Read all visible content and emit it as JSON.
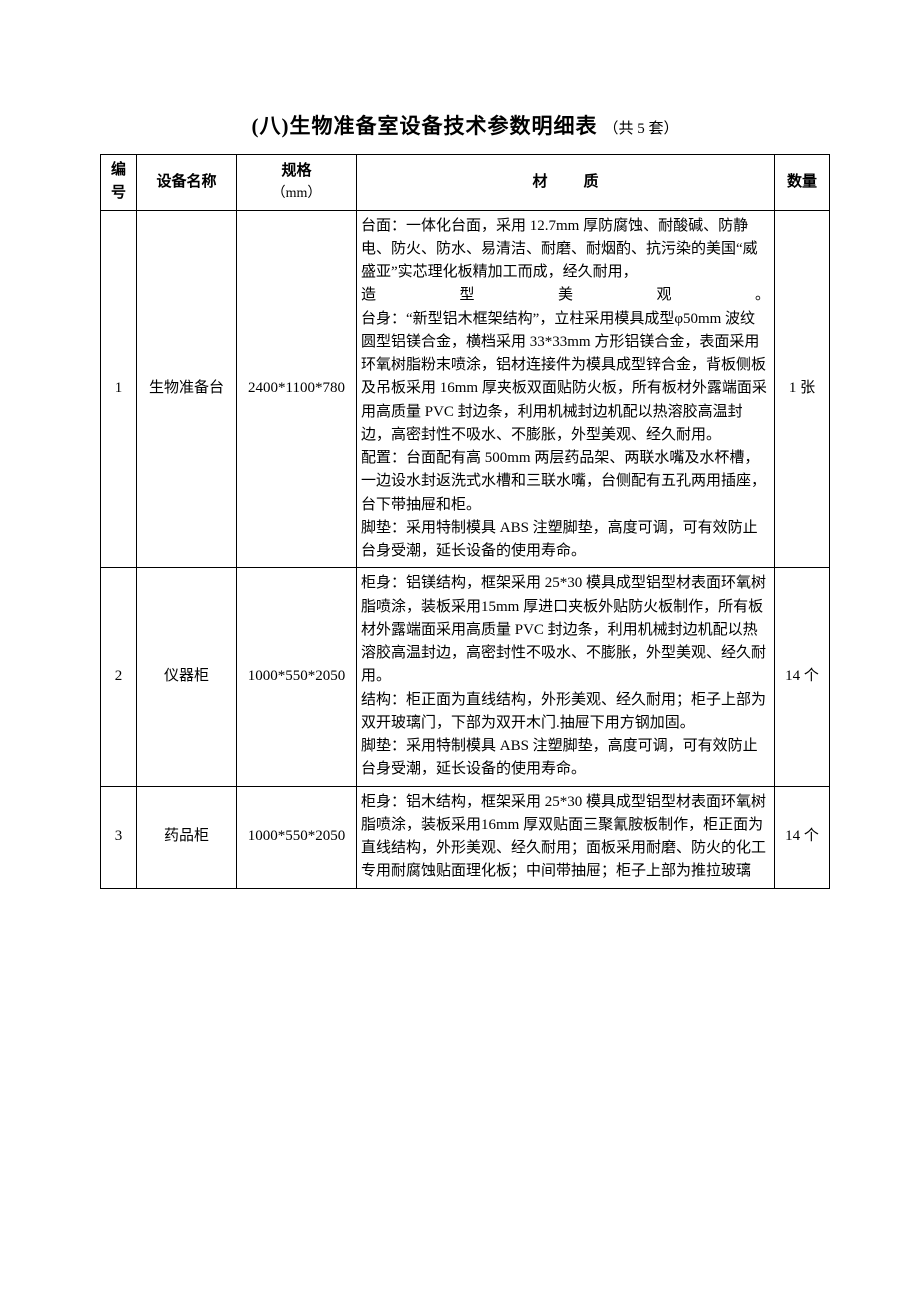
{
  "title": {
    "main": "(八)生物准备室设备技术参数明细表",
    "sub": "（共 5 套）"
  },
  "columns": {
    "num": "编号",
    "name": "设备名称",
    "spec_top": "规格",
    "spec_unit": "（mm）",
    "material": "材质",
    "qty": "数量"
  },
  "rows": [
    {
      "num": "1",
      "name": "生物准备台",
      "spec": "2400*1100*780",
      "material_pre": "台面：一体化台面，采用 12.7mm 厚防腐蚀、耐酸碱、防静电、防火、防水、易清洁、耐磨、耐烟酌、抗污染的美国“威盛亚”实芯理化板精加工而成，经久耐用，",
      "material_justify": "造型美观。",
      "material_post": "台身：“新型铝木框架结构”，立柱采用模具成型φ50mm 波纹圆型铝镁合金，横档采用 33*33mm 方形铝镁合金，表面采用环氧树脂粉末喷涂，铝材连接件为模具成型锌合金，背板侧板及吊板采用 16mm 厚夹板双面贴防火板，所有板材外露端面采用高质量 PVC 封边条，利用机械封边机配以热溶胶高温封边，高密封性不吸水、不膨胀，外型美观、经久耐用。\n配置：台面配有高 500mm 两层药品架、两联水嘴及水杯槽，一边设水封返洗式水槽和三联水嘴，台侧配有五孔两用插座，台下带抽屉和柜。\n脚垫：采用特制模具 ABS 注塑脚垫，高度可调，可有效防止台身受潮，延长设备的使用寿命。",
      "qty": "1 张"
    },
    {
      "num": "2",
      "name": "仪器柜",
      "spec": "1000*550*2050",
      "material": "柜身：铝镁结构，框架采用 25*30 模具成型铝型材表面环氧树脂喷涂，装板采用15mm 厚进口夹板外贴防火板制作，所有板材外露端面采用高质量 PVC 封边条，利用机械封边机配以热溶胶高温封边，高密封性不吸水、不膨胀，外型美观、经久耐用。\n结构：柜正面为直线结构，外形美观、经久耐用；柜子上部为双开玻璃门，下部为双开木门.抽屉下用方钢加固。\n脚垫：采用特制模具 ABS 注塑脚垫，高度可调，可有效防止台身受潮，延长设备的使用寿命。",
      "qty": "14 个"
    },
    {
      "num": "3",
      "name": "药品柜",
      "spec": "1000*550*2050",
      "material": "柜身：铝木结构，框架采用 25*30 模具成型铝型材表面环氧树脂喷涂，装板采用16mm 厚双贴面三聚氰胺板制作，柜正面为直线结构，外形美观、经久耐用；面板采用耐磨、防火的化工专用耐腐蚀贴面理化板；中间带抽屉；柜子上部为推拉玻璃",
      "qty": "14 个"
    }
  ]
}
